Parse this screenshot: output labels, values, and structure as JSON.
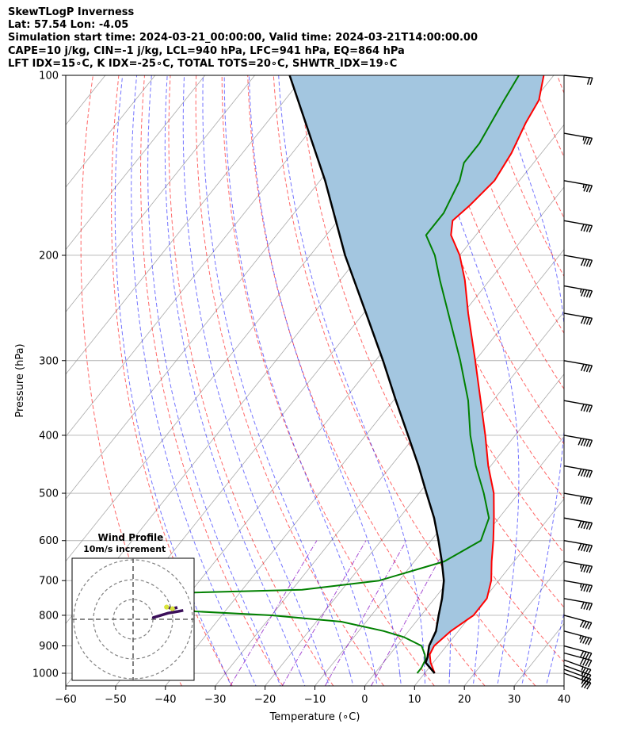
{
  "header": {
    "line1": "SkewTLogP Inverness",
    "line2": "Lat: 57.54   Lon: -4.05",
    "line3": "Simulation start time: 2024-03-21_00:00:00, Valid time: 2024-03-21T14:00:00.00",
    "line4": "CAPE=10 j/kg, CIN=-1 j/kg, LCL=940 hPa, LFC=941 hPa, EQ=864 hPa",
    "line5": "LFT IDX=15∘C, K IDX=-25∘C, TOTAL TOTS=20∘C, SHWTR_IDX=19∘C"
  },
  "colors": {
    "temperature": "#ff0000",
    "dewpoint": "#008000",
    "parcel": "#000000",
    "cape_fill": "#a3c6e0",
    "dry_adiabat": "#ff0000",
    "moist_adiabat": "#0000ff",
    "mixing_ratio": "#8000c0",
    "isotherm": "#999999"
  },
  "chart_data": {
    "type": "skewt",
    "xlabel": "Temperature (∘C)",
    "ylabel": "Pressure (hPa)",
    "xlim": [
      -60,
      40
    ],
    "ylim": [
      1050,
      100
    ],
    "x_ticks": [
      -60,
      -50,
      -40,
      -30,
      -20,
      -10,
      0,
      10,
      20,
      30,
      40
    ],
    "x_tick_labels": [
      "−60",
      "−50",
      "−40",
      "−30",
      "−20",
      "−10",
      "0",
      "10",
      "20",
      "30",
      "40"
    ],
    "y_ticks": [
      1000,
      900,
      800,
      700,
      600,
      500,
      400,
      300,
      200,
      100
    ],
    "y_tick_labels": [
      "1000",
      "900",
      "800",
      "700",
      "600",
      "500",
      "400",
      "300",
      "200",
      "100"
    ],
    "grid": true,
    "series": [
      {
        "key": "temperature",
        "points": [
          [
            1000,
            12
          ],
          [
            960,
            9.5
          ],
          [
            930,
            8
          ],
          [
            900,
            7.5
          ],
          [
            850,
            8.5
          ],
          [
            800,
            10.5
          ],
          [
            750,
            10.5
          ],
          [
            700,
            8.5
          ],
          [
            650,
            5.5
          ],
          [
            600,
            2.5
          ],
          [
            550,
            -1
          ],
          [
            500,
            -5
          ],
          [
            450,
            -10.5
          ],
          [
            400,
            -16
          ],
          [
            350,
            -22.5
          ],
          [
            300,
            -30
          ],
          [
            250,
            -39
          ],
          [
            220,
            -45
          ],
          [
            200,
            -50
          ],
          [
            185,
            -55
          ],
          [
            175,
            -57
          ],
          [
            165,
            -56
          ],
          [
            150,
            -55
          ],
          [
            135,
            -56
          ],
          [
            120,
            -58
          ],
          [
            110,
            -59
          ],
          [
            100,
            -62
          ]
        ]
      },
      {
        "key": "dewpoint",
        "points": [
          [
            1000,
            8.5
          ],
          [
            980,
            8.5
          ],
          [
            950,
            8
          ],
          [
            930,
            7
          ],
          [
            900,
            5
          ],
          [
            870,
            0
          ],
          [
            850,
            -5
          ],
          [
            820,
            -15
          ],
          [
            800,
            -30
          ],
          [
            785,
            -50
          ],
          [
            775,
            -62
          ],
          [
            740,
            -65
          ],
          [
            735,
            -55
          ],
          [
            725,
            -28
          ],
          [
            700,
            -14
          ],
          [
            650,
            -4
          ],
          [
            600,
            0
          ],
          [
            550,
            -2
          ],
          [
            500,
            -7
          ],
          [
            450,
            -13
          ],
          [
            400,
            -19
          ],
          [
            350,
            -25
          ],
          [
            300,
            -33
          ],
          [
            250,
            -43
          ],
          [
            220,
            -50
          ],
          [
            200,
            -55
          ],
          [
            185,
            -60
          ],
          [
            170,
            -60
          ],
          [
            150,
            -62
          ],
          [
            140,
            -64
          ],
          [
            130,
            -64
          ],
          [
            110,
            -66
          ],
          [
            100,
            -67
          ]
        ]
      },
      {
        "key": "parcel",
        "points": [
          [
            1000,
            12
          ],
          [
            960,
            8.5
          ],
          [
            940,
            8
          ],
          [
            900,
            6.5
          ],
          [
            850,
            5.5
          ],
          [
            800,
            3.5
          ],
          [
            750,
            1.5
          ],
          [
            700,
            -1
          ],
          [
            650,
            -4.5
          ],
          [
            600,
            -8.5
          ],
          [
            550,
            -13
          ],
          [
            500,
            -18.5
          ],
          [
            450,
            -24.5
          ],
          [
            400,
            -31.5
          ],
          [
            350,
            -39.5
          ],
          [
            300,
            -48.5
          ],
          [
            250,
            -59.5
          ],
          [
            200,
            -73
          ],
          [
            150,
            -89
          ],
          [
            100,
            -113
          ]
        ]
      }
    ],
    "wind_barbs": {
      "pressures": [
        1000,
        985,
        970,
        950,
        925,
        900,
        850,
        800,
        750,
        700,
        650,
        600,
        550,
        500,
        450,
        400,
        350,
        300,
        250,
        225,
        200,
        175,
        150,
        125,
        100
      ],
      "speeds_kt": [
        35,
        35,
        35,
        35,
        40,
        40,
        45,
        40,
        40,
        45,
        45,
        50,
        50,
        45,
        50,
        50,
        40,
        40,
        40,
        45,
        40,
        40,
        35,
        35,
        20
      ],
      "directions_deg": [
        250,
        250,
        250,
        250,
        255,
        255,
        255,
        255,
        260,
        260,
        260,
        260,
        260,
        260,
        260,
        260,
        260,
        260,
        260,
        260,
        260,
        260,
        260,
        260,
        265
      ]
    },
    "inset": {
      "title": "Wind Profile",
      "subtitle": "10m/s increment"
    }
  }
}
